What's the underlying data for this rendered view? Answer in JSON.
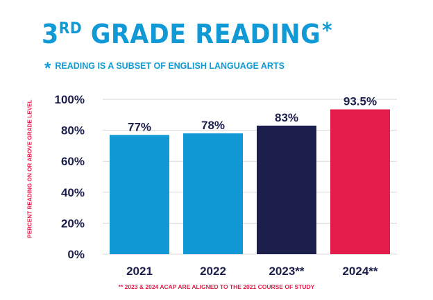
{
  "title": {
    "main_prefix": "3",
    "main_sup": "RD",
    "main_rest": " GRADE READING",
    "star": "*"
  },
  "subtitle": {
    "star": "*",
    "text": "READING IS A SUBSET OF ENGLISH LANGUAGE ARTS"
  },
  "footnote": "** 2023 & 2024 ACAP ARE ALIGNED TO THE 2021 COURSE OF STUDY",
  "colors": {
    "title": "#1199d5",
    "bar_light": "#1199d5",
    "bar_dark": "#1c1f4c",
    "bar_red": "#e31c4b",
    "text_dark": "#1c1f4c",
    "footnote": "#e31c4b"
  },
  "chart_data": {
    "type": "bar",
    "ylabel": "PERCENT READING ON OR ABOVE GRADE LEVEL",
    "xlabel": "",
    "ylim": [
      0,
      100
    ],
    "yticks": [
      0,
      20,
      40,
      60,
      80,
      100
    ],
    "ytick_labels": [
      "0%",
      "20%",
      "40%",
      "60%",
      "80%",
      "100%"
    ],
    "grid": true,
    "categories": [
      "2021",
      "2022",
      "2023**",
      "2024**"
    ],
    "values": [
      77,
      78,
      83,
      93.5
    ],
    "value_labels": [
      "77%",
      "78%",
      "83%",
      "93.5%"
    ],
    "bar_colors": [
      "#1199d5",
      "#1199d5",
      "#1c1f4c",
      "#e31c4b"
    ]
  }
}
